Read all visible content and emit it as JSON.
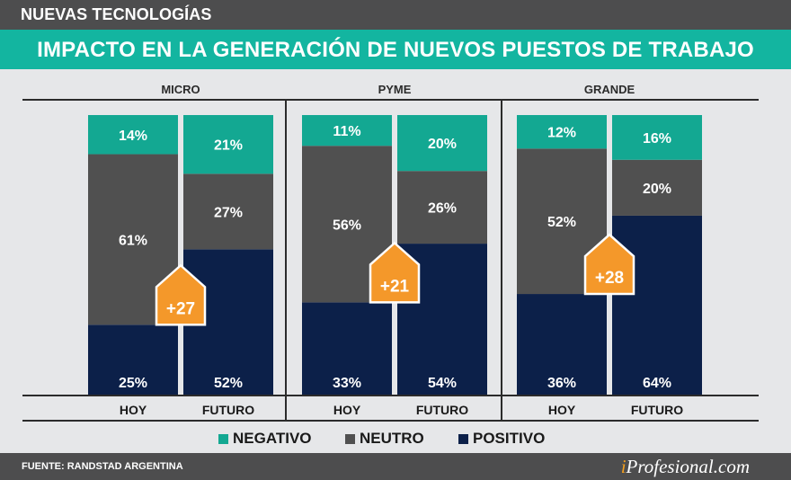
{
  "header": {
    "kicker": "NUEVAS TECNOLOGÍAS",
    "title": "IMPACTO EN LA GENERACIÓN DE NUEVOS PUESTOS DE TRABAJO"
  },
  "colors": {
    "negativo": "#13a892",
    "neutro": "#505050",
    "positivo": "#0c2049",
    "badge": "#f4982a",
    "header_bg": "#4d4d4e",
    "title_bg": "#13b5a0"
  },
  "legend": [
    {
      "key": "negativo",
      "label": "NEGATIVO"
    },
    {
      "key": "neutro",
      "label": "NEUTRO"
    },
    {
      "key": "positivo",
      "label": "POSITIVO"
    }
  ],
  "footer": {
    "source": "FUENTE: RANDSTAD ARGENTINA",
    "brand_i": "i",
    "brand_rest": "Profesional.com"
  },
  "chart_data": {
    "type": "bar",
    "stacked": true,
    "title": "IMPACTO EN LA GENERACIÓN DE NUEVOS PUESTOS DE TRABAJO",
    "xlabel": "",
    "ylabel": "",
    "ylim": [
      0,
      100
    ],
    "unit": "%",
    "groups": [
      {
        "name": "MICRO",
        "categories": [
          "HOY",
          "FUTURO"
        ],
        "series": [
          {
            "name": "POSITIVO",
            "values": [
              25,
              52
            ]
          },
          {
            "name": "NEUTRO",
            "values": [
              61,
              27
            ]
          },
          {
            "name": "NEGATIVO",
            "values": [
              14,
              21
            ]
          }
        ],
        "change_label": "+27"
      },
      {
        "name": "PYME",
        "categories": [
          "HOY",
          "FUTURO"
        ],
        "series": [
          {
            "name": "POSITIVO",
            "values": [
              33,
              54
            ]
          },
          {
            "name": "NEUTRO",
            "values": [
              56,
              26
            ]
          },
          {
            "name": "NEGATIVO",
            "values": [
              11,
              20
            ]
          }
        ],
        "change_label": "+21"
      },
      {
        "name": "GRANDE",
        "categories": [
          "HOY",
          "FUTURO"
        ],
        "series": [
          {
            "name": "POSITIVO",
            "values": [
              36,
              64
            ]
          },
          {
            "name": "NEUTRO",
            "values": [
              52,
              20
            ]
          },
          {
            "name": "NEGATIVO",
            "values": [
              12,
              16
            ]
          }
        ],
        "change_label": "+28"
      }
    ],
    "legend": [
      "NEGATIVO",
      "NEUTRO",
      "POSITIVO"
    ],
    "legend_position": "bottom",
    "grid": false
  }
}
